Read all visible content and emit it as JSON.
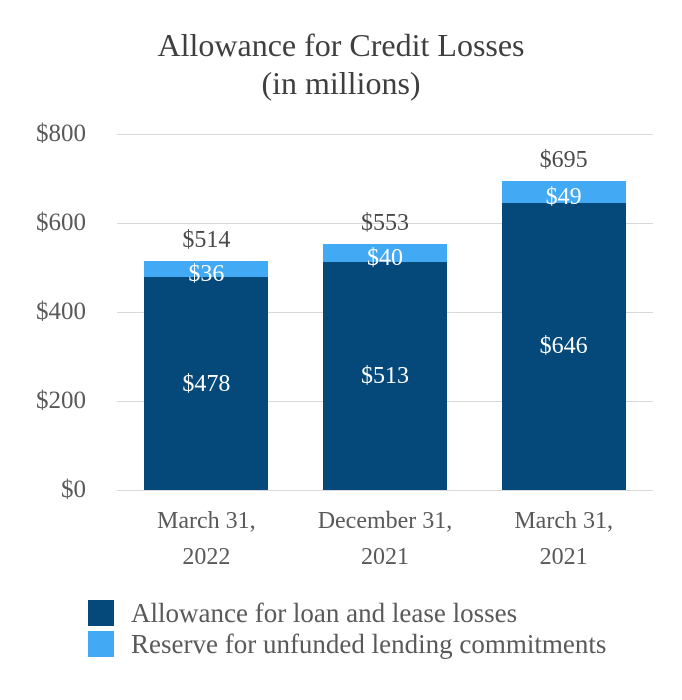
{
  "title": {
    "line1": "Allowance for Credit Losses",
    "line2": "(in millions)"
  },
  "chart_data": {
    "type": "bar",
    "stacked": true,
    "title": "Allowance for Credit Losses (in millions)",
    "categories": [
      {
        "slug": "march-31-2022",
        "line1": "March 31,",
        "line2": "2022"
      },
      {
        "slug": "december-31-2021",
        "line1": "December 31,",
        "line2": "2021"
      },
      {
        "slug": "march-31-2021",
        "line1": "March 31,",
        "line2": "2021"
      }
    ],
    "series": [
      {
        "name": "Allowance for loan and lease losses",
        "color": "#05497B",
        "values": [
          478,
          513,
          646
        ],
        "labels": [
          "$478",
          "$513",
          "$646"
        ]
      },
      {
        "name": "Reserve for unfunded lending commitments",
        "color": "#42A9F5",
        "values": [
          36,
          40,
          49
        ],
        "labels": [
          "$36",
          "$40",
          "$49"
        ]
      }
    ],
    "totals": {
      "values": [
        514,
        553,
        695
      ],
      "labels": [
        "$514",
        "$553",
        "$695"
      ]
    },
    "y_axis": {
      "min": 0,
      "max": 800,
      "ticks": [
        0,
        200,
        400,
        600,
        800
      ],
      "tick_labels": [
        "$0",
        "$200",
        "$400",
        "$600",
        "$800"
      ]
    },
    "grid": true,
    "legend_position": "bottom-left",
    "colors": {
      "gridline": "#D9D9D9",
      "axis_text": "#595959",
      "title_text": "#3F3F3F",
      "total_label_text": "#4A4A4A",
      "segment_label_text": "#FFFFFF"
    }
  }
}
